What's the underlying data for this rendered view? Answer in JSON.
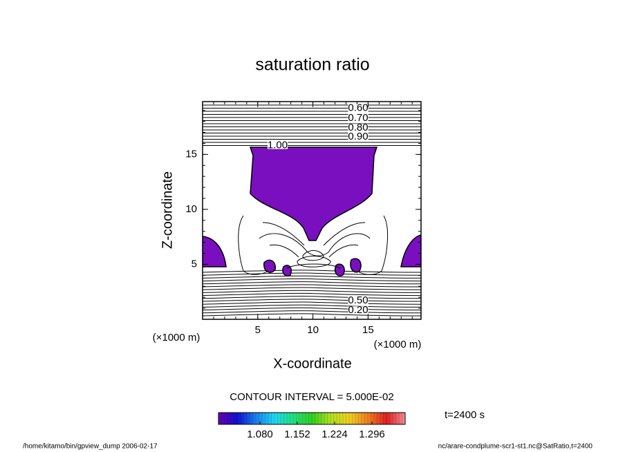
{
  "chart_data": {
    "type": "contour",
    "title": "saturation ratio",
    "x_label": "X-coordinate",
    "y_label": "Z-coordinate",
    "x_unit": "(×1000 m)",
    "y_unit": "(×1000 m)",
    "xlim": [
      0,
      19.8
    ],
    "ylim": [
      0,
      19.8
    ],
    "xticks": [
      5,
      10,
      15
    ],
    "yticks": [
      5,
      10,
      15
    ],
    "minor_tick_step": 1,
    "contour_labels": [
      {
        "value": 0.6,
        "label": "0.60",
        "x": 14.1,
        "y": 19.2
      },
      {
        "value": 0.7,
        "label": "0.70",
        "x": 14.1,
        "y": 18.3
      },
      {
        "value": 0.8,
        "label": "0.80",
        "x": 14.1,
        "y": 17.4
      },
      {
        "value": 0.9,
        "label": "0.90",
        "x": 14.1,
        "y": 16.6
      },
      {
        "value": 1.0,
        "label": "1.00",
        "x": 6.8,
        "y": 15.8
      },
      {
        "value": 0.5,
        "label": "0.50",
        "x": 14.1,
        "y": 1.7
      },
      {
        "value": 0.2,
        "label": "0.20",
        "x": 14.1,
        "y": 0.8
      }
    ],
    "fill_color": "#7a0fc0",
    "contour_interval": "CONTOUR INTERVAL = 5.000E-02",
    "colorbar": {
      "lim": [
        1.0,
        1.36
      ],
      "ticks": [
        {
          "value": 1.08,
          "label": "1.080"
        },
        {
          "value": 1.152,
          "label": "1.152"
        },
        {
          "value": 1.224,
          "label": "1.224"
        },
        {
          "value": 1.296,
          "label": "1.296"
        }
      ],
      "colors": [
        "#6a00b0",
        "#1010d0",
        "#1a7ff0",
        "#20d8f0",
        "#20e080",
        "#30d020",
        "#b0e020",
        "#f0d020",
        "#f08020",
        "#e02020",
        "#f09090"
      ]
    },
    "time_label": "t=2400 s",
    "footer_left": "/home/kitamo/bin/gpview_dump  2006-02-17",
    "footer_right": "nc/arare-condplume-scr1-st1.nc@SatRatio,t=2400"
  }
}
